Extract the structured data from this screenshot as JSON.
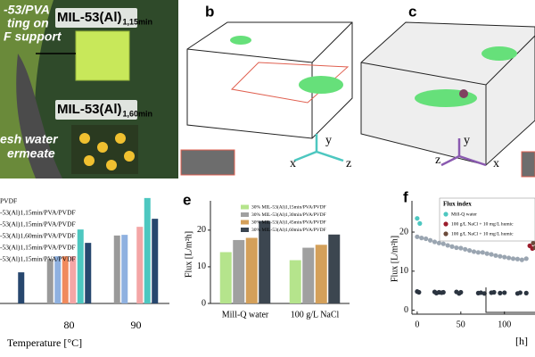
{
  "panels": {
    "a": {
      "texts": [
        "-53/PVA",
        "ting on",
        "F support",
        "esh water",
        "ermeate"
      ],
      "labels": [
        {
          "main": "MIL-53(Al)",
          "sub": "1,15min"
        },
        {
          "main": "MIL-53(Al)",
          "sub": "1,60min"
        }
      ]
    },
    "b": {
      "label": "b",
      "axes": [
        "y",
        "x",
        "z"
      ]
    },
    "c": {
      "label": "c",
      "axes": [
        "z",
        "y",
        "x"
      ]
    }
  },
  "chart_data": [
    {
      "type": "bar",
      "xlabel": "Temperature [°C]",
      "categories": [
        null,
        "80",
        "90"
      ],
      "ylim": [
        0,
        32
      ],
      "series": [
        {
          "name": "PVDF",
          "color": "#9a9a9a",
          "values": [
            null,
            13.3,
            20.3
          ]
        },
        {
          "name": "-53(Al)1,15min/PVA/PVDF",
          "color": "#8fb1e0",
          "values": [
            null,
            14.1,
            20.5
          ]
        },
        {
          "name": "-53(Al)1,15min/PVA/PVDF",
          "color": "#f08a5d",
          "values": [
            null,
            14.1,
            null
          ]
        },
        {
          "name": "-53(Al)1,60min/PVA/PVDF",
          "color": "#f4a6a6",
          "values": [
            null,
            14.1,
            22.9
          ]
        },
        {
          "name": "-53(Al)1,15min/PVA/PVDF",
          "color": "#4dc7c0",
          "values": [
            null,
            22.1,
            31.5
          ]
        },
        {
          "name": "-53(Al)1,15min/PVA/PVDF",
          "color": "#27476e",
          "values": [
            9.3,
            18.1,
            25.3
          ]
        }
      ]
    },
    {
      "type": "bar",
      "panel_label": "e",
      "ylabel": "Flux [L/m²h]",
      "categories": [
        "Mill-Q water",
        "100 g/L NaCl"
      ],
      "ylim": [
        0,
        28
      ],
      "yticks": [
        0,
        10,
        20
      ],
      "series": [
        {
          "name": "30% MIL-53(Al)1,15min/PVA/PVDF",
          "color": "#b5e48c",
          "values": [
            14,
            11.8
          ]
        },
        {
          "name": "30% MIL-53(Al)1,30min/PVA/PVDF",
          "color": "#a0a0a0",
          "values": [
            17.3,
            15.2
          ]
        },
        {
          "name": "30% MIL-53(Al)1,45min/PVA/PVDF",
          "color": "#d4a05a",
          "values": [
            17.9,
            16
          ]
        },
        {
          "name": "30% MIL-53(Al)1,60min/PVA/PVDF",
          "color": "#3c4650",
          "values": [
            22.5,
            18.8
          ]
        }
      ]
    },
    {
      "type": "scatter",
      "panel_label": "f",
      "ylabel": "Flux [L/m²h]",
      "xlabel": "[h]",
      "legend_title": "Flux index",
      "xlim": [
        -6,
        135
      ],
      "ylim": [
        -1,
        28
      ],
      "xticks": [
        0,
        50,
        100
      ],
      "yticks": [
        0,
        10,
        20
      ],
      "series": [
        {
          "name": "Mill-Q water",
          "color": "#4dc7c0",
          "x": [
            0,
            3
          ],
          "values": [
            23.5,
            22.2
          ]
        },
        {
          "name": "100 g/L NaCl + 10 mg/L humic",
          "color": "#9b1c2c",
          "x": [
            129,
            132
          ],
          "values": [
            16.5,
            15.8
          ]
        },
        {
          "name": "100 g/L NaCl + 10 mg/L humic",
          "color": "#6b4a3a",
          "x": [
            133,
            135
          ],
          "values": [
            17.2,
            16
          ]
        },
        {
          "color": "#9aa5b1",
          "x": [
            0,
            5,
            10,
            15,
            20,
            25,
            30,
            35,
            40,
            45,
            50,
            55,
            60,
            65,
            70,
            75,
            80,
            85,
            90,
            95,
            100,
            105,
            110,
            115,
            120,
            125
          ],
          "values": [
            18.8,
            18.5,
            18.3,
            17.9,
            17.5,
            17.2,
            17,
            16.6,
            16.3,
            16,
            15.9,
            15.6,
            15.3,
            15,
            14.8,
            14.8,
            14.5,
            14.3,
            14,
            13.8,
            13.6,
            13.4,
            13.2,
            13.1,
            12.9,
            13.2
          ]
        },
        {
          "color": "#2b3440",
          "x": [
            0,
            2,
            20,
            22,
            25,
            28,
            30,
            45,
            48,
            50,
            70,
            73,
            77,
            85,
            88,
            95,
            100,
            115,
            118,
            125
          ],
          "values": [
            4.8,
            4.6,
            4.7,
            4.4,
            4.6,
            4.5,
            4.6,
            4.7,
            4.3,
            4.6,
            4.4,
            4.5,
            4.3,
            4.5,
            4.6,
            4.4,
            4.5,
            4.3,
            4.5,
            4.4
          ]
        }
      ]
    }
  ]
}
